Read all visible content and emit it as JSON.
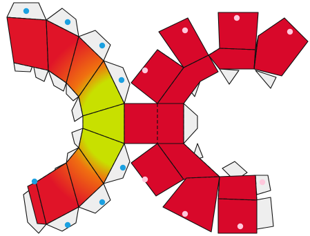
{
  "net": {
    "colors": {
      "red": "#d8082a",
      "tab_fill": "#eeeeee",
      "stroke": "#111111",
      "dot_blue": "#1ca0e0",
      "dot_pink": "#ffc8dc",
      "gradient_inner": "#c8e000",
      "gradient_mid": "#f07010",
      "gradient_outer": "#e01428"
    }
  }
}
